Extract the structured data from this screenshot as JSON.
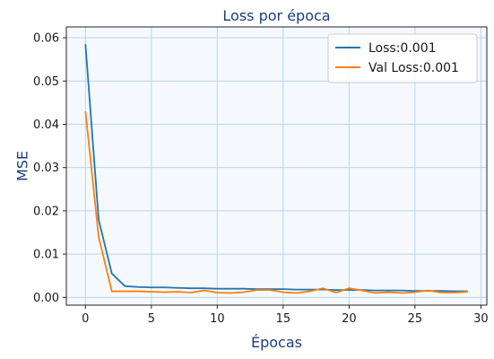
{
  "chart_data": {
    "type": "line",
    "title": "Loss por época",
    "xlabel": "Épocas",
    "ylabel": "MSE",
    "xlim": [
      -1.45,
      30.45
    ],
    "ylim": [
      -0.0018,
      0.0625
    ],
    "xticks": [
      0,
      5,
      10,
      15,
      20,
      25,
      30
    ],
    "yticks": [
      0.0,
      0.01,
      0.02,
      0.03,
      0.04,
      0.05,
      0.06
    ],
    "ytick_labels": [
      "0.00",
      "0.01",
      "0.02",
      "0.03",
      "0.04",
      "0.05",
      "0.06"
    ],
    "grid": true,
    "legend_position": "upper right",
    "x": [
      0,
      1,
      2,
      3,
      4,
      5,
      6,
      7,
      8,
      9,
      10,
      11,
      12,
      13,
      14,
      15,
      16,
      17,
      18,
      19,
      20,
      21,
      22,
      23,
      24,
      25,
      26,
      27,
      28,
      29
    ],
    "series": [
      {
        "name": "Loss:0.001",
        "color": "#1f77b4",
        "values": [
          0.0585,
          0.018,
          0.0055,
          0.0026,
          0.0024,
          0.0023,
          0.0023,
          0.0022,
          0.0021,
          0.0021,
          0.002,
          0.002,
          0.002,
          0.0019,
          0.0019,
          0.0019,
          0.0018,
          0.0018,
          0.0018,
          0.0017,
          0.0017,
          0.0017,
          0.0016,
          0.0016,
          0.0016,
          0.0015,
          0.0015,
          0.0015,
          0.0014,
          0.0014
        ]
      },
      {
        "name": "Val Loss:0.001",
        "color": "#ff7f0e",
        "values": [
          0.043,
          0.014,
          0.0014,
          0.0014,
          0.0014,
          0.0013,
          0.0012,
          0.0013,
          0.0011,
          0.0016,
          0.0011,
          0.001,
          0.0012,
          0.0017,
          0.0017,
          0.0012,
          0.001,
          0.0014,
          0.0021,
          0.0011,
          0.0021,
          0.0016,
          0.001,
          0.0012,
          0.001,
          0.0012,
          0.0016,
          0.0011,
          0.0011,
          0.0013
        ]
      }
    ]
  },
  "colors": {
    "plot_background": "#f5f9fd",
    "grid": "#b7d6ea",
    "title_text": "#1c3f7a",
    "axis_label_text": "#1c3f7a"
  }
}
